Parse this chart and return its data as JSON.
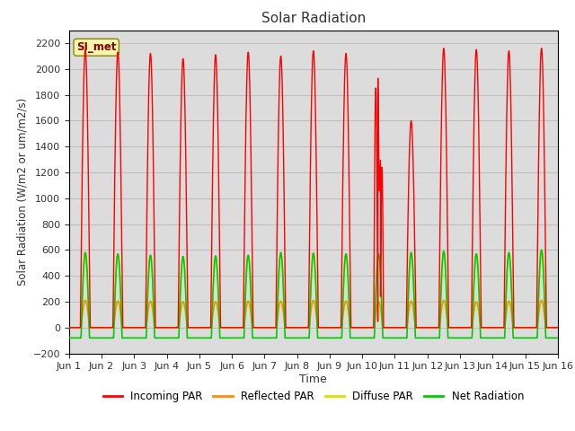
{
  "title": "Solar Radiation",
  "ylabel": "Solar Radiation (W/m2 or um/m2/s)",
  "xlabel": "Time",
  "ylim": [
    -200,
    2300
  ],
  "yticks": [
    -200,
    0,
    200,
    400,
    600,
    800,
    1000,
    1200,
    1400,
    1600,
    1800,
    2000,
    2200
  ],
  "xlim_start": 0,
  "xlim_end": 15,
  "xtick_labels": [
    "Jun 1",
    "Jun 2",
    "Jun 3",
    "Jun 4",
    "Jun 5",
    "Jun 6",
    "Jun 7",
    "Jun 8",
    "Jun 9",
    "Jun 10",
    "Jun 11",
    "Jun 12",
    "Jun 13",
    "Jun 14",
    "Jun 15",
    "Jun 16"
  ],
  "station_label": "SI_met",
  "bg_color": "#dcdcdc",
  "legend_entries": [
    "Incoming PAR",
    "Reflected PAR",
    "Diffuse PAR",
    "Net Radiation"
  ],
  "legend_colors": [
    "#ff0000",
    "#ff8c00",
    "#dddd00",
    "#00cc00"
  ],
  "line_colors": {
    "incoming": "#ff0000",
    "reflected": "#ff8c00",
    "diffuse": "#dddd00",
    "net": "#00cc00"
  },
  "num_days": 15,
  "incoming_peaks": [
    2150,
    2130,
    2120,
    2080,
    2110,
    2130,
    2100,
    2140,
    2120,
    1950,
    1600,
    2160,
    2150,
    2140,
    2160
  ],
  "net_peaks": [
    580,
    570,
    560,
    550,
    555,
    560,
    580,
    575,
    570,
    570,
    580,
    590,
    570,
    580,
    600
  ],
  "diffuse_peaks": [
    580,
    570,
    555,
    545,
    540,
    555,
    575,
    580,
    570,
    570,
    580,
    590,
    570,
    575,
    600
  ],
  "reflected_peaks": [
    210,
    205,
    205,
    200,
    200,
    205,
    205,
    210,
    205,
    200,
    205,
    210,
    200,
    205,
    210
  ]
}
